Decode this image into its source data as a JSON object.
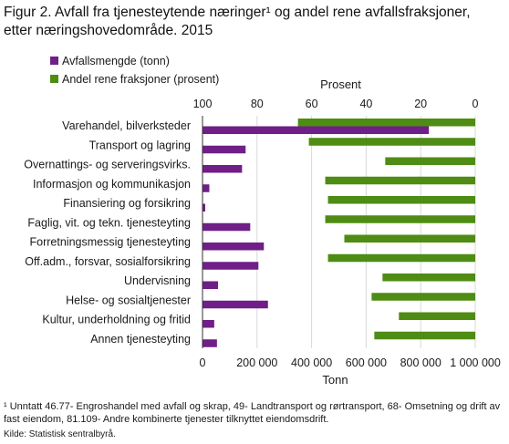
{
  "figure": {
    "title": "Figur 2. Avfall fra tjenesteytende næringer¹ og andel rene avfallsfraksjoner,\netter næringshovedområde.  2015",
    "footnote": "¹ Unntatt 46.77- Engroshandel med avfall og skrap, 49- Landtransport og rørtransport, 68- Omsetning og drift av fast eiendom, 81.109- Andre kombinerte tjenester tilknyttet  eiendomsdrift.",
    "source": "Kilde: Statistisk sentralbyrå."
  },
  "colors": {
    "waste_series": "#6f1f87",
    "share_series": "#4e8c14",
    "gridline": "#d9d9d9",
    "baseline": "#333333"
  },
  "chart_data": {
    "type": "bar",
    "orientation": "horizontal",
    "categories": [
      "Varehandel, bilverksteder",
      "Transport og lagring",
      "Overnattings- og serveringsvirks.",
      "Informasjon og kommunikasjon",
      "Finansiering og forsikring",
      "Faglig, vit. og tekn. tjenesteyting",
      "Forretningsmessig tjenesteyting",
      "Off.adm., forsvar, sosialforsikring",
      "Undervisning",
      "Helse- og sosialtjenester",
      "Kultur, underholdning og fritid",
      "Annen tjenesteyting"
    ],
    "series": [
      {
        "name": "Avfallsmengde (tonn)",
        "axis": "bottom",
        "values": [
          830000,
          158000,
          145000,
          25000,
          10000,
          175000,
          225000,
          205000,
          57000,
          240000,
          43000,
          53000
        ]
      },
      {
        "name": "Andel rene fraksjoner (prosent)",
        "axis": "top",
        "values": [
          65,
          61,
          33,
          55,
          54,
          55,
          48,
          54,
          34,
          38,
          28,
          37
        ]
      }
    ],
    "x_bottom": {
      "label": "Tonn",
      "range": [
        0,
        1000000
      ],
      "ticks": [
        0,
        200000,
        400000,
        600000,
        800000,
        1000000
      ],
      "tick_labels": [
        "0",
        "200 000",
        "400 000",
        "600 000",
        "800 000",
        "1 000 000"
      ]
    },
    "x_top": {
      "label": "Prosent",
      "range": [
        100,
        0
      ],
      "reversed": true,
      "ticks": [
        100,
        80,
        60,
        40,
        20,
        0
      ],
      "tick_labels": [
        "100",
        "80",
        "60",
        "40",
        "20",
        "0"
      ]
    },
    "grid": true,
    "legend_position": "top-left"
  }
}
